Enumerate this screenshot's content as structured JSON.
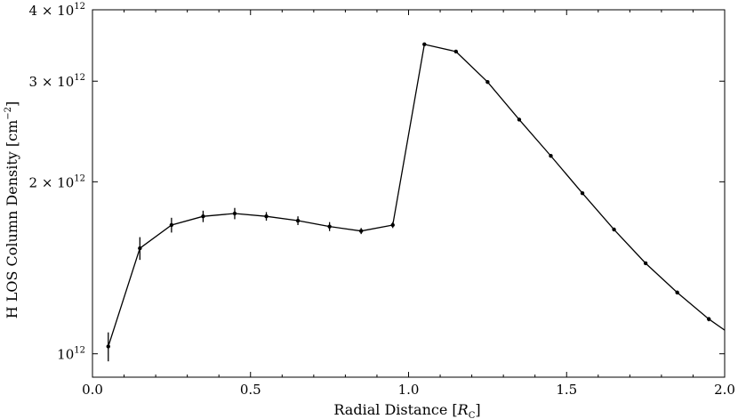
{
  "chart_data": {
    "type": "line",
    "xlabel": "Radial Distance [",
    "xlabel_symbol": "R",
    "xlabel_sub": "C",
    "xlabel_end": "]",
    "ylabel": "H LOS Column Density [cm",
    "ylabel_sup": "−2",
    "ylabel_end": "]",
    "xlim": [
      0.0,
      2.0
    ],
    "ylim": [
      910000000000.0,
      4000000000000.0
    ],
    "yscale": "log",
    "grid": false,
    "x_ticks": [
      {
        "value": 0.0,
        "label": "0.0"
      },
      {
        "value": 0.5,
        "label": "0.5"
      },
      {
        "value": 1.0,
        "label": "1.0"
      },
      {
        "value": 1.5,
        "label": "1.5"
      },
      {
        "value": 2.0,
        "label": "2.0"
      }
    ],
    "y_ticks": [
      {
        "value": 1000000000000.0,
        "mant": "10",
        "exp": "12"
      },
      {
        "value": 2000000000000.0,
        "mant": "2 × 10",
        "exp": "12"
      },
      {
        "value": 3000000000000.0,
        "mant": "3 × 10",
        "exp": "12"
      },
      {
        "value": 4000000000000.0,
        "mant": "4 × 10",
        "exp": "12"
      }
    ],
    "series": [
      {
        "color": "#000000",
        "points": [
          {
            "x": 0.05,
            "y": 1030000000000.0,
            "err": 60000000000.0
          },
          {
            "x": 0.15,
            "y": 1530000000000.0,
            "err": 70000000000.0
          },
          {
            "x": 0.25,
            "y": 1680000000000.0,
            "err": 50000000000.0
          },
          {
            "x": 0.35,
            "y": 1740000000000.0,
            "err": 40000000000.0
          },
          {
            "x": 0.45,
            "y": 1760000000000.0,
            "err": 40000000000.0
          },
          {
            "x": 0.55,
            "y": 1740000000000.0,
            "err": 30000000000.0
          },
          {
            "x": 0.65,
            "y": 1710000000000.0,
            "err": 30000000000.0
          },
          {
            "x": 0.75,
            "y": 1670000000000.0,
            "err": 30000000000.0
          },
          {
            "x": 0.85,
            "y": 1640000000000.0,
            "err": 20000000000.0
          },
          {
            "x": 0.95,
            "y": 1680000000000.0,
            "err": 20000000000.0
          },
          {
            "x": 1.05,
            "y": 3480000000000.0,
            "err": 20000000000.0
          },
          {
            "x": 1.15,
            "y": 3380000000000.0,
            "err": 20000000000.0
          },
          {
            "x": 1.25,
            "y": 2990000000000.0,
            "err": 20000000000.0
          },
          {
            "x": 1.35,
            "y": 2570000000000.0,
            "err": 10000000000.0
          },
          {
            "x": 1.45,
            "y": 2220000000000.0,
            "err": 10000000000.0
          },
          {
            "x": 1.55,
            "y": 1910000000000.0,
            "err": 10000000000.0
          },
          {
            "x": 1.65,
            "y": 1650000000000.0,
            "err": 10000000000.0
          },
          {
            "x": 1.75,
            "y": 1440000000000.0,
            "err": 10000000000.0
          },
          {
            "x": 1.85,
            "y": 1280000000000.0,
            "err": 10000000000.0
          },
          {
            "x": 1.95,
            "y": 1150000000000.0,
            "err": 10000000000.0
          }
        ],
        "line_end": {
          "x": 2.0,
          "y": 1100000000000.0
        }
      }
    ]
  }
}
